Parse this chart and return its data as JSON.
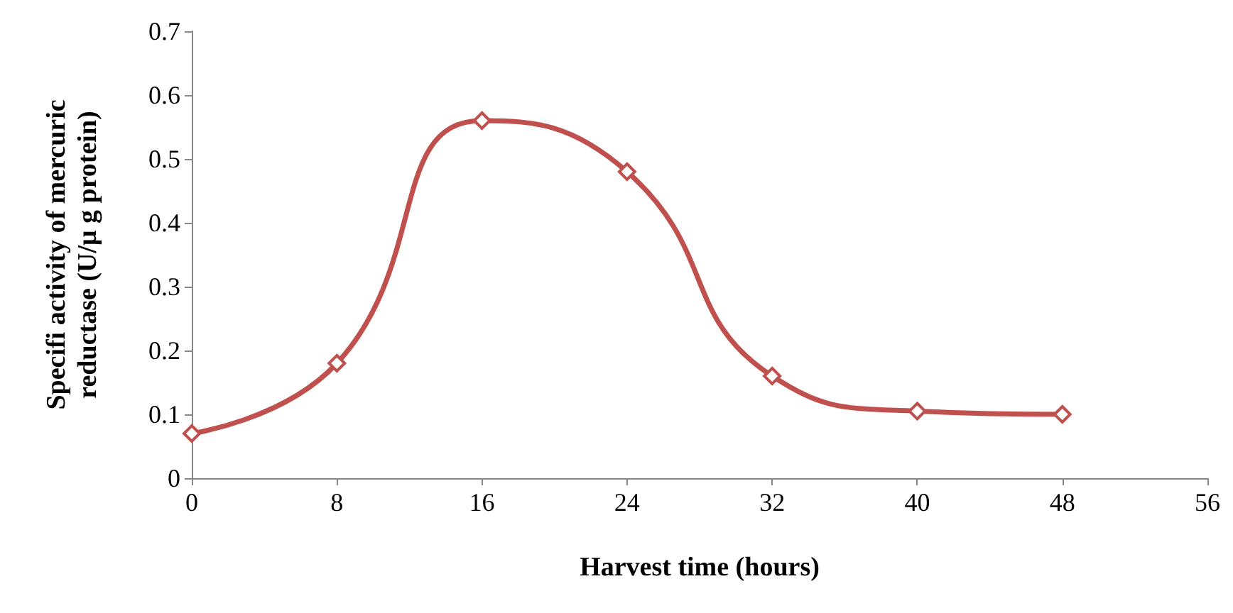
{
  "chart_data": {
    "type": "line",
    "xlabel": "Harvest time (hours)",
    "ylabel": "Specifi activity of mercuric reductase (U/μ g protein)",
    "x": [
      0,
      8,
      16,
      24,
      32,
      40,
      48
    ],
    "series": [
      {
        "color": "#c0504d",
        "values": [
          0.07,
          0.18,
          0.56,
          0.48,
          0.16,
          0.105,
          0.1
        ]
      }
    ],
    "xlim": [
      0,
      56
    ],
    "xticks": [
      0,
      8,
      16,
      24,
      32,
      40,
      48,
      56
    ],
    "ylim": [
      0,
      0.7
    ],
    "yticks": [
      0,
      0.1,
      0.2,
      0.3,
      0.4,
      0.5,
      0.6,
      0.7
    ],
    "grid": false,
    "marker": "diamond",
    "line_style": "solid"
  }
}
